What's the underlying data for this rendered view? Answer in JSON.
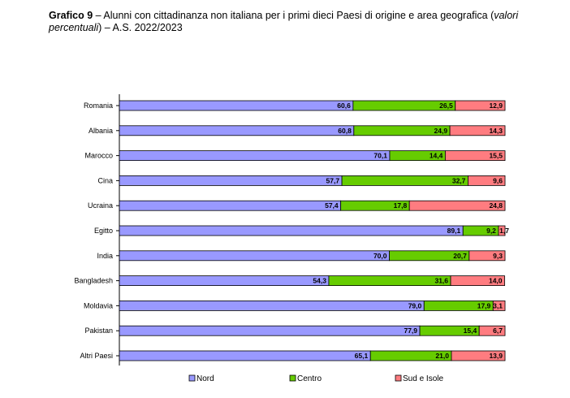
{
  "title": {
    "prefix": "Grafico 9",
    "main": " – Alunni con cittadinanza non italiana per i primi dieci Paesi di origine e area geografica (",
    "italic": "valori percentuali",
    "suffix": ") – A.S. 2022/2023"
  },
  "chart_data": {
    "type": "bar",
    "stacked": true,
    "orientation": "horizontal",
    "categories": [
      "Romania",
      "Albania",
      "Marocco",
      "Cina",
      "Ucraina",
      "Egitto",
      "India",
      "Bangladesh",
      "Moldavia",
      "Pakistan",
      "Altri Paesi"
    ],
    "series": [
      {
        "name": "Nord",
        "color": "#9999ff",
        "values": [
          60.6,
          60.8,
          70.1,
          57.7,
          57.4,
          89.1,
          70.0,
          54.3,
          79.0,
          77.9,
          65.1
        ],
        "labels": [
          "60,6",
          "60,8",
          "70,1",
          "57,7",
          "57,4",
          "89,1",
          "70,0",
          "54,3",
          "79,0",
          "77,9",
          "65,1"
        ]
      },
      {
        "name": "Centro",
        "color": "#66cc00",
        "values": [
          26.5,
          24.9,
          14.4,
          32.7,
          17.8,
          9.2,
          20.7,
          31.6,
          17.9,
          15.4,
          21.0
        ],
        "labels": [
          "26,5",
          "24,9",
          "14,4",
          "32,7",
          "17,8",
          "9,2",
          "20,7",
          "31,6",
          "17,9",
          "15,4",
          "21,0"
        ]
      },
      {
        "name": "Sud e Isole",
        "color": "#ff7c80",
        "values": [
          12.9,
          14.3,
          15.5,
          9.6,
          24.8,
          1.7,
          9.3,
          14.0,
          3.1,
          6.7,
          13.9
        ],
        "labels": [
          "12,9",
          "14,3",
          "15,5",
          "9,6",
          "24,8",
          "1,7",
          "9,3",
          "14,0",
          "3,1",
          "6,7",
          "13,9"
        ]
      }
    ],
    "xlim": [
      0,
      100
    ],
    "legend": "bottom"
  }
}
